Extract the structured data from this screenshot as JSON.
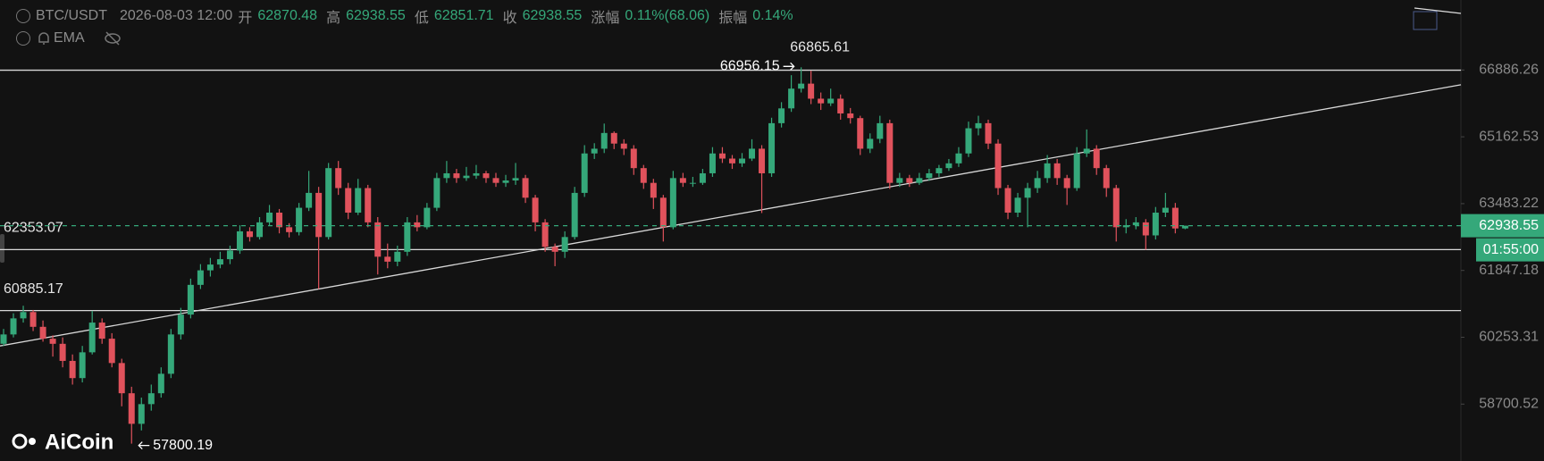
{
  "header": {
    "symbol": "BTC/USDT",
    "time": "2026-08-03 12:00",
    "open_label": "开",
    "high_label": "高",
    "low_label": "低",
    "close_label": "收",
    "change_label": "涨幅",
    "change": "0.11%(68.06)",
    "amplitude_label": "振幅",
    "amplitude": "0.14%",
    "indicator": "EMA"
  },
  "chart_data": {
    "type": "candlestick",
    "log_scale": true,
    "up_color": "#35a87a",
    "down_color": "#e0525c",
    "ylim": [
      57410,
      68740
    ],
    "yticks": [
      58700.52,
      60253.31,
      61847.18,
      63483.22,
      65162.53,
      66886.26
    ],
    "hlines": [
      {
        "value": 66880,
        "show_label": false
      },
      {
        "value": 62353.07,
        "show_label": true
      },
      {
        "value": 60885.17,
        "show_label": true
      }
    ],
    "trendline": {
      "from": 60050,
      "to": 66500
    },
    "countdown": "01:55:00",
    "watermark": "AiCoin",
    "ohlc": [
      [
        60100,
        60450,
        60050,
        60320
      ],
      [
        60320,
        60820,
        60250,
        60700
      ],
      [
        60700,
        61000,
        60600,
        60850
      ],
      [
        60850,
        60900,
        60400,
        60500
      ],
      [
        60500,
        60650,
        60150,
        60220
      ],
      [
        60220,
        60300,
        59800,
        60100
      ],
      [
        60100,
        60250,
        59550,
        59700
      ],
      [
        59700,
        59850,
        59150,
        59300
      ],
      [
        59300,
        60050,
        59200,
        59900
      ],
      [
        59900,
        60880,
        59850,
        60600
      ],
      [
        60600,
        60700,
        60100,
        60220
      ],
      [
        60220,
        60350,
        59550,
        59650
      ],
      [
        59650,
        59750,
        58650,
        58950
      ],
      [
        58950,
        59100,
        57800.19,
        58250
      ],
      [
        58250,
        58850,
        58100,
        58700
      ],
      [
        58700,
        59150,
        58550,
        58950
      ],
      [
        58950,
        59550,
        58850,
        59400
      ],
      [
        59400,
        60450,
        59300,
        60320
      ],
      [
        60320,
        60950,
        60200,
        60790
      ],
      [
        60790,
        61650,
        60700,
        61500
      ],
      [
        61500,
        62000,
        61400,
        61850
      ],
      [
        61850,
        62150,
        61700,
        61990
      ],
      [
        61990,
        62300,
        61900,
        62120
      ],
      [
        62120,
        62450,
        62000,
        62330
      ],
      [
        62330,
        62950,
        62250,
        62800
      ],
      [
        62800,
        62900,
        62550,
        62660
      ],
      [
        62660,
        63150,
        62600,
        63020
      ],
      [
        63020,
        63450,
        62950,
        63260
      ],
      [
        63260,
        63350,
        62750,
        62900
      ],
      [
        62900,
        63000,
        62650,
        62780
      ],
      [
        62780,
        63500,
        62700,
        63380
      ],
      [
        63380,
        64300,
        63300,
        63750
      ],
      [
        63750,
        63900,
        61400,
        62660
      ],
      [
        62660,
        64500,
        62600,
        64370
      ],
      [
        64370,
        64550,
        63700,
        63870
      ],
      [
        63870,
        64000,
        63100,
        63260
      ],
      [
        63260,
        64100,
        63200,
        63870
      ],
      [
        63870,
        63950,
        62900,
        63020
      ],
      [
        63020,
        63150,
        61750,
        62180
      ],
      [
        62180,
        62500,
        61900,
        62060
      ],
      [
        62060,
        62450,
        61950,
        62300
      ],
      [
        62300,
        63150,
        62200,
        63020
      ],
      [
        63020,
        63200,
        62800,
        62900
      ],
      [
        62900,
        63500,
        62850,
        63380
      ],
      [
        63380,
        64250,
        63300,
        64120
      ],
      [
        64120,
        64550,
        64000,
        64240
      ],
      [
        64240,
        64350,
        64000,
        64120
      ],
      [
        64120,
        64400,
        64050,
        64180
      ],
      [
        64180,
        64450,
        64100,
        64240
      ],
      [
        64240,
        64300,
        64000,
        64120
      ],
      [
        64120,
        64250,
        63900,
        64000
      ],
      [
        64000,
        64200,
        63900,
        64060
      ],
      [
        64060,
        64500,
        63950,
        64120
      ],
      [
        64120,
        64200,
        63500,
        63630
      ],
      [
        63630,
        63700,
        62800,
        63020
      ],
      [
        63020,
        63100,
        62300,
        62420
      ],
      [
        62420,
        62500,
        61950,
        62300
      ],
      [
        62300,
        62800,
        62150,
        62660
      ],
      [
        62660,
        63900,
        62600,
        63750
      ],
      [
        63750,
        64950,
        63650,
        64740
      ],
      [
        64740,
        65000,
        64600,
        64860
      ],
      [
        64860,
        65500,
        64750,
        65260
      ],
      [
        65260,
        65300,
        64850,
        64990
      ],
      [
        64990,
        65100,
        64700,
        64860
      ],
      [
        64860,
        64950,
        64200,
        64370
      ],
      [
        64370,
        64450,
        63850,
        64000
      ],
      [
        64000,
        64100,
        63350,
        63630
      ],
      [
        63630,
        63700,
        62550,
        62900
      ],
      [
        62900,
        64300,
        62850,
        64120
      ],
      [
        64120,
        64250,
        63900,
        64000
      ],
      [
        64000,
        64150,
        63900,
        64000
      ],
      [
        64000,
        64350,
        63950,
        64240
      ],
      [
        64240,
        64900,
        64150,
        64740
      ],
      [
        64740,
        64900,
        64500,
        64610
      ],
      [
        64610,
        64700,
        64350,
        64490
      ],
      [
        64490,
        64750,
        64400,
        64610
      ],
      [
        64610,
        65100,
        64550,
        64860
      ],
      [
        64860,
        64950,
        63250,
        64240
      ],
      [
        64240,
        65650,
        64150,
        65510
      ],
      [
        65510,
        66050,
        65400,
        65890
      ],
      [
        65890,
        66750,
        65800,
        66400
      ],
      [
        66400,
        66956.15,
        66300,
        66530
      ],
      [
        66530,
        66865.61,
        66000,
        66140
      ],
      [
        66140,
        66300,
        65850,
        66020
      ],
      [
        66020,
        66400,
        65950,
        66140
      ],
      [
        66140,
        66250,
        65600,
        65760
      ],
      [
        65760,
        65900,
        65500,
        65640
      ],
      [
        65640,
        65700,
        64700,
        64860
      ],
      [
        64860,
        65250,
        64750,
        65110
      ],
      [
        65110,
        65700,
        65000,
        65510
      ],
      [
        65510,
        65600,
        63850,
        64000
      ],
      [
        64000,
        64250,
        63900,
        64120
      ],
      [
        64120,
        64200,
        63900,
        64000
      ],
      [
        64000,
        64250,
        63950,
        64120
      ],
      [
        64120,
        64350,
        64050,
        64240
      ],
      [
        64240,
        64450,
        64150,
        64370
      ],
      [
        64370,
        64600,
        64300,
        64490
      ],
      [
        64490,
        64900,
        64400,
        64740
      ],
      [
        64740,
        65550,
        64650,
        65380
      ],
      [
        65380,
        65700,
        65200,
        65510
      ],
      [
        65510,
        65600,
        64850,
        64990
      ],
      [
        64990,
        65100,
        63700,
        63870
      ],
      [
        63870,
        63950,
        63100,
        63260
      ],
      [
        63260,
        63750,
        63150,
        63630
      ],
      [
        63630,
        64000,
        62900,
        63870
      ],
      [
        63870,
        64300,
        63750,
        64120
      ],
      [
        64120,
        64700,
        64000,
        64490
      ],
      [
        64490,
        64600,
        63950,
        64120
      ],
      [
        64120,
        64200,
        63450,
        63870
      ],
      [
        63870,
        64900,
        63800,
        64740
      ],
      [
        64740,
        65350,
        64650,
        64860
      ],
      [
        64860,
        64950,
        64200,
        64370
      ],
      [
        64370,
        64450,
        63650,
        63870
      ],
      [
        63870,
        63950,
        62550,
        62900
      ],
      [
        62900,
        63100,
        62750,
        62950
      ],
      [
        62950,
        63150,
        62850,
        63020
      ],
      [
        63020,
        63100,
        62350,
        62700
      ],
      [
        62700,
        63400,
        62600,
        63260
      ],
      [
        63260,
        63750,
        63150,
        63380
      ],
      [
        63380,
        63500,
        62750,
        62870.48
      ],
      [
        62870.48,
        62938.55,
        62851.71,
        62938.55
      ]
    ]
  }
}
